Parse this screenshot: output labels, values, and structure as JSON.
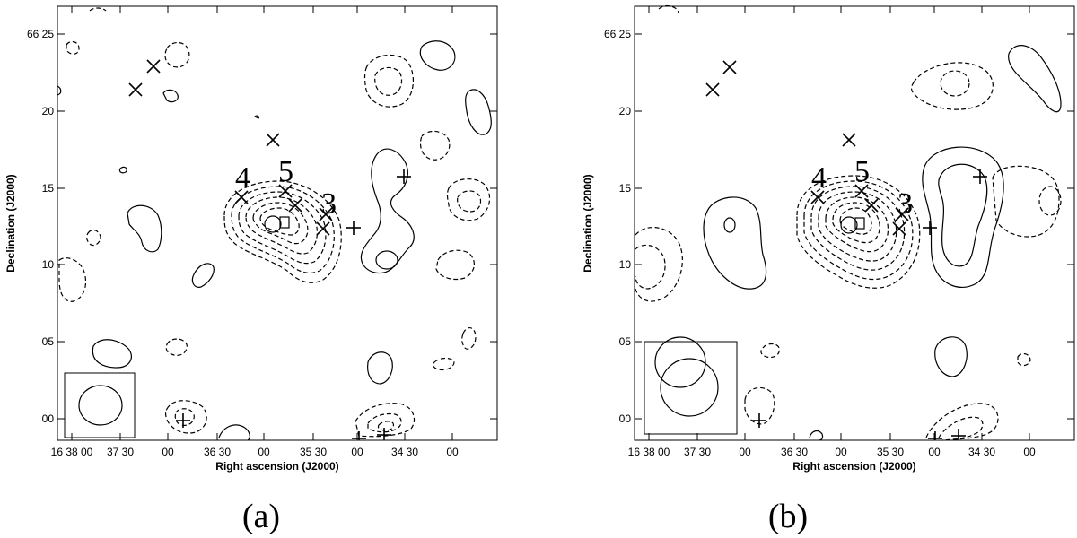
{
  "axes": {
    "x_title": "Right ascension (J2000)",
    "y_title": "Declination (J2000)",
    "x_ticks": [
      "16 38 00",
      "37 30",
      "00",
      "36 30",
      "00",
      "35 30",
      "00",
      "34 30",
      "00"
    ],
    "y_ticks": [
      "66 25",
      "20",
      "15",
      "10",
      "05",
      "00"
    ]
  },
  "panels": [
    {
      "caption": "(a)",
      "source_labels": [
        "4",
        "5",
        "3"
      ]
    },
    {
      "caption": "(b)",
      "source_labels": [
        "4",
        "5",
        "3"
      ]
    }
  ]
}
